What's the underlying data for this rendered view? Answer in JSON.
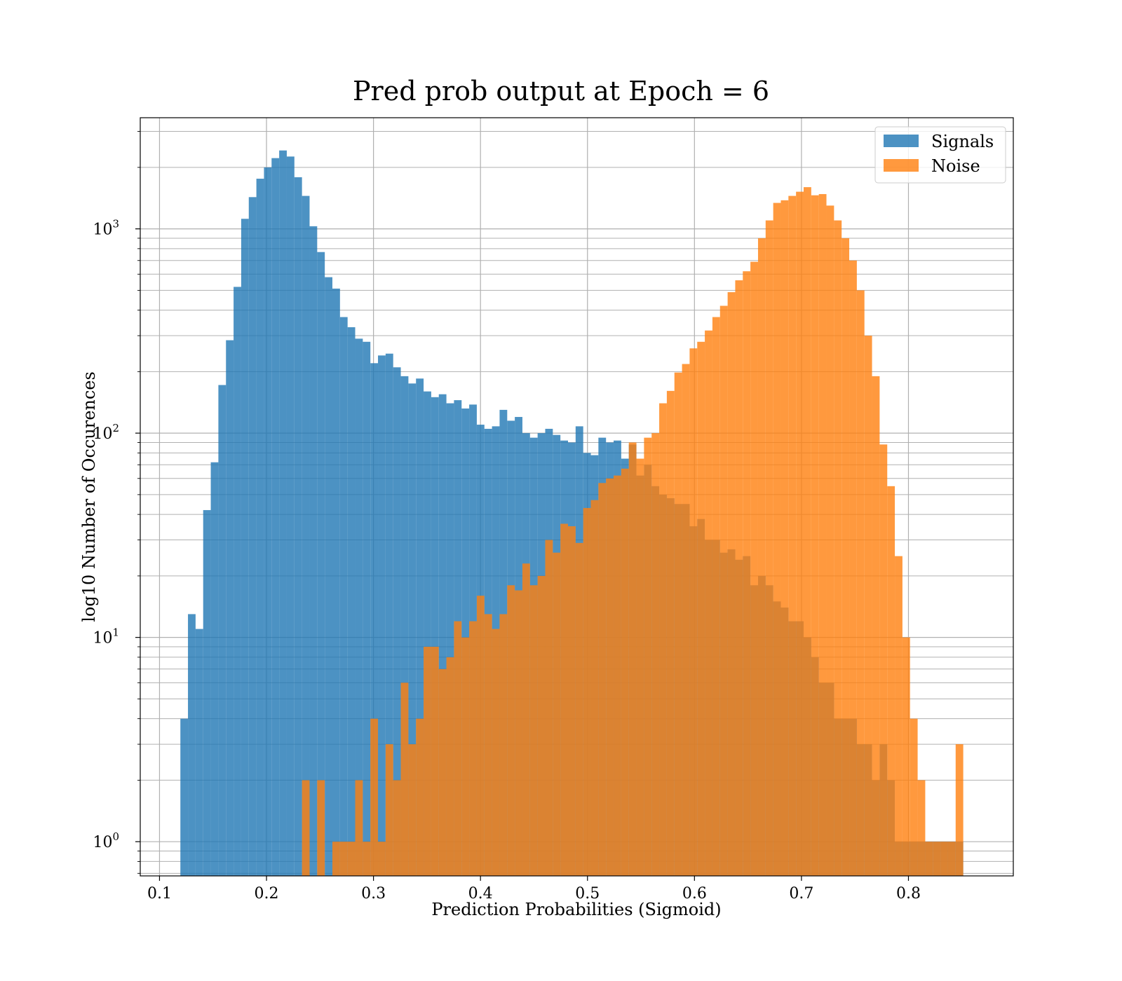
{
  "chart_data": {
    "type": "bar",
    "title": "Pred prob output at Epoch = 6",
    "xlabel": "Prediction Probabilities (Sigmoid)",
    "ylabel": "log10 Number of Occurences",
    "x_ticks": [
      "0.1",
      "0.2",
      "0.3",
      "0.4",
      "0.5",
      "0.6",
      "0.7",
      "0.8"
    ],
    "y_ticks": [
      {
        "base": "10",
        "exp": "0"
      },
      {
        "base": "10",
        "exp": "1"
      },
      {
        "base": "10",
        "exp": "2"
      },
      {
        "base": "10",
        "exp": "3"
      }
    ],
    "yscale": "log",
    "xlim": [
      0.082,
      0.898
    ],
    "ylim": [
      0.68,
      3500
    ],
    "grid": true,
    "legend_position": "top-right",
    "series": [
      {
        "name": "Signals",
        "color": "#1f77b4",
        "opacity": 0.8,
        "x_start": 0.1195,
        "bin_width": 0.007104,
        "values": [
          4,
          13,
          11,
          42,
          72,
          172,
          285,
          520,
          1120,
          1430,
          1760,
          2000,
          2220,
          2420,
          2260,
          1790,
          1450,
          1030,
          770,
          580,
          510,
          370,
          330,
          290,
          280,
          220,
          240,
          245,
          210,
          190,
          175,
          185,
          160,
          150,
          155,
          140,
          145,
          132,
          138,
          110,
          105,
          108,
          130,
          115,
          120,
          100,
          95,
          100,
          105,
          98,
          92,
          90,
          108,
          80,
          78,
          95,
          90,
          92,
          75,
          88,
          62,
          70,
          55,
          50,
          48,
          45,
          45,
          35,
          38,
          30,
          30,
          26,
          27,
          24,
          25,
          18,
          20,
          18,
          15,
          14,
          12,
          12,
          10,
          8,
          6,
          6,
          4,
          4,
          4,
          3,
          3,
          2,
          3,
          2,
          1,
          1,
          1,
          1,
          1,
          1,
          1,
          1,
          1,
          0,
          0,
          0,
          0,
          0,
          0,
          0
        ]
      },
      {
        "name": "Noise",
        "color": "#ff7f0e",
        "opacity": 0.8,
        "x_start": 0.1195,
        "bin_width": 0.007104,
        "values": [
          0,
          0,
          0,
          0,
          0,
          0,
          0,
          0,
          0,
          0,
          0,
          0,
          0,
          0,
          0,
          0,
          2,
          0,
          2,
          0,
          1,
          1,
          1,
          2,
          1,
          4,
          1,
          3,
          2,
          6,
          3,
          4,
          9,
          9,
          7,
          8,
          12,
          10,
          12,
          16,
          13,
          11,
          13,
          18,
          17,
          23,
          18,
          20,
          30,
          26,
          36,
          35,
          29,
          43,
          47,
          57,
          60,
          62,
          67,
          90,
          75,
          95,
          100,
          140,
          161,
          198,
          218,
          260,
          280,
          318,
          370,
          420,
          490,
          560,
          620,
          690,
          900,
          1100,
          1340,
          1380,
          1450,
          1520,
          1600,
          1460,
          1480,
          1300,
          1100,
          900,
          700,
          500,
          300,
          190,
          88,
          55,
          25,
          10,
          4,
          2,
          1,
          1,
          1,
          1,
          3,
          0,
          0,
          0,
          0,
          0,
          0,
          0
        ]
      }
    ]
  }
}
